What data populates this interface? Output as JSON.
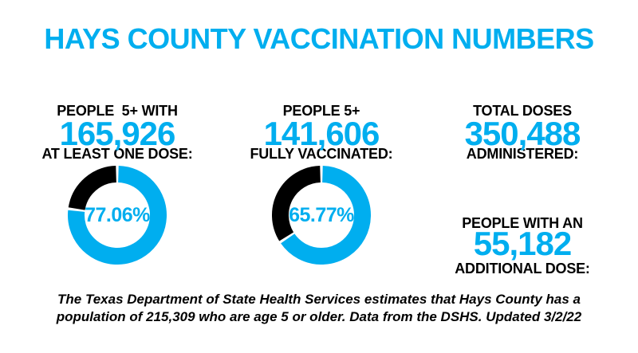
{
  "title": "HAYS COUNTY VACCINATION NUMBERS",
  "colors": {
    "accent_blue": "#00AEEF",
    "ink_black": "#000000",
    "background": "#FFFFFF"
  },
  "stats": [
    {
      "label_line1": "PEOPLE  5+ WITH",
      "label_line2": "AT LEAST ONE DOSE:",
      "value": "165,926"
    },
    {
      "label_line1": "PEOPLE 5+",
      "label_line2": "FULLY VACCINATED:",
      "value": "141,606"
    },
    {
      "label_line1": "TOTAL DOSES",
      "label_line2": "ADMINISTERED:",
      "value": "350,488"
    }
  ],
  "additional": {
    "label_line1": "PEOPLE WITH AN",
    "label_line2": "ADDITIONAL DOSE:",
    "value": "55,182"
  },
  "chart_data": [
    {
      "type": "pie",
      "variant": "donut",
      "values": [
        77.06,
        22.94
      ],
      "colors": [
        "#00AEEF",
        "#000000"
      ],
      "center_label": "77.06%",
      "start_angle": "top",
      "direction": "clockwise",
      "gap_degrees": 1.6
    },
    {
      "type": "pie",
      "variant": "donut",
      "values": [
        65.77,
        34.23
      ],
      "colors": [
        "#00AEEF",
        "#000000"
      ],
      "center_label": "65.77%",
      "start_angle": "top",
      "direction": "clockwise",
      "gap_degrees": 1.6
    }
  ],
  "footer": {
    "line1": "The Texas Department of State Health Services estimates that Hays County has a",
    "line2": "population of 215,309 who are age 5 or older. Data from the DSHS. Updated 3/2/22"
  }
}
